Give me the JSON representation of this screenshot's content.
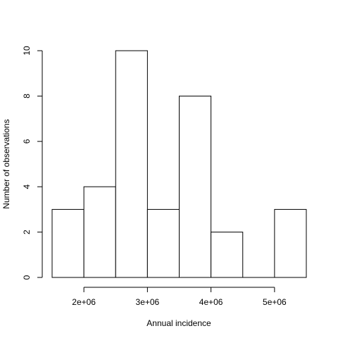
{
  "chart_data": {
    "type": "bar",
    "title": "",
    "xlabel": "Annual incidence",
    "ylabel": "Number of observations",
    "bins": [
      {
        "from": 1500000,
        "to": 2000000,
        "count": 3
      },
      {
        "from": 2000000,
        "to": 2500000,
        "count": 4
      },
      {
        "from": 2500000,
        "to": 3000000,
        "count": 10
      },
      {
        "from": 3000000,
        "to": 3500000,
        "count": 3
      },
      {
        "from": 3500000,
        "to": 4000000,
        "count": 8
      },
      {
        "from": 4000000,
        "to": 4500000,
        "count": 2
      },
      {
        "from": 4500000,
        "to": 5000000,
        "count": 0
      },
      {
        "from": 5000000,
        "to": 5500000,
        "count": 3
      }
    ],
    "xlim": [
      1500000,
      5500000
    ],
    "ylim": [
      0,
      10
    ],
    "x_ticks": [
      {
        "value": 2000000,
        "label": "2e+06"
      },
      {
        "value": 3000000,
        "label": "3e+06"
      },
      {
        "value": 4000000,
        "label": "4e+06"
      },
      {
        "value": 5000000,
        "label": "5e+06"
      }
    ],
    "y_ticks": [
      {
        "value": 0,
        "label": "0"
      },
      {
        "value": 2,
        "label": "2"
      },
      {
        "value": 4,
        "label": "4"
      },
      {
        "value": 6,
        "label": "6"
      },
      {
        "value": 8,
        "label": "8"
      },
      {
        "value": 10,
        "label": "10"
      }
    ],
    "grid": false,
    "colors": {
      "bar_fill": "#ffffff",
      "bar_stroke": "#000000"
    }
  }
}
